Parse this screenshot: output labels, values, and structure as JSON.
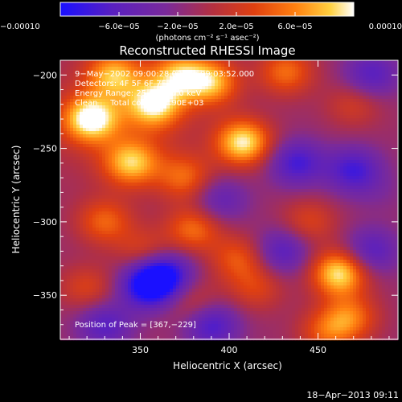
{
  "chart_data": {
    "type": "heatmap",
    "title": "Reconstructed RHESSI Image",
    "xlabel": "Heliocentric X (arcsec)",
    "ylabel": "Heliocentric Y (arcsec)",
    "xlim": [
      305,
      495
    ],
    "ylim": [
      -380,
      -190
    ],
    "x_ticks": [
      350,
      400,
      450
    ],
    "y_ticks": [
      -200,
      -250,
      -300,
      -350
    ],
    "colorbar": {
      "range": [
        -0.0001,
        0.0001
      ],
      "tick_values": [
        -0.0001,
        -6e-05,
        -2e-05,
        2e-05,
        6e-05,
        0.0001
      ],
      "tick_labels": [
        "−0.00010",
        "−6.0e−05",
        "−2.0e−05",
        "2.0e−05",
        "6.0e−05",
        "0.00010"
      ],
      "unit_label": "(photons cm⁻² s⁻¹ asec⁻²)",
      "colors": [
        "#1a10ff",
        "#5a20c0",
        "#7a2a9a",
        "#b43040",
        "#e04010",
        "#ff8010",
        "#ffd040",
        "#ffffff"
      ]
    },
    "annotations": [
      "9−May−2002 09:00:28.000 to 09:03:52.000",
      "Detectors: 4F 5F 6F 7F 8F 9F",
      "Energy Range: 25.0 − 50.0 keV",
      "Clean     Total counts: 1.90E+03"
    ],
    "peak_label": "Position of Peak = [367,−229]",
    "peak": [
      367,
      -229
    ],
    "sources": [
      {
        "x": 322,
        "y": -230,
        "v": 0.95
      },
      {
        "x": 335,
        "y": -200,
        "v": 0.7
      },
      {
        "x": 345,
        "y": -260,
        "v": 0.75
      },
      {
        "x": 358,
        "y": -220,
        "v": 0.85
      },
      {
        "x": 372,
        "y": -200,
        "v": 0.7
      },
      {
        "x": 390,
        "y": -205,
        "v": 0.75
      },
      {
        "x": 408,
        "y": -246,
        "v": 0.95
      },
      {
        "x": 375,
        "y": -270,
        "v": 0.5
      },
      {
        "x": 432,
        "y": -198,
        "v": 0.55
      },
      {
        "x": 330,
        "y": -300,
        "v": 0.5
      },
      {
        "x": 380,
        "y": -305,
        "v": 0.55
      },
      {
        "x": 352,
        "y": -320,
        "v": 0.35
      },
      {
        "x": 445,
        "y": -300,
        "v": 0.35
      },
      {
        "x": 405,
        "y": -325,
        "v": 0.45
      },
      {
        "x": 462,
        "y": -335,
        "v": 0.95
      },
      {
        "x": 415,
        "y": -345,
        "v": 0.35
      },
      {
        "x": 468,
        "y": -365,
        "v": 0.55
      },
      {
        "x": 455,
        "y": -375,
        "v": 0.45
      },
      {
        "x": 380,
        "y": -355,
        "v": 0.3
      },
      {
        "x": 320,
        "y": -345,
        "v": 0.35
      },
      {
        "x": 470,
        "y": -220,
        "v": 0.3
      },
      {
        "x": 485,
        "y": -280,
        "v": -0.1
      },
      {
        "x": 355,
        "y": -343,
        "v": -0.95
      },
      {
        "x": 438,
        "y": -260,
        "v": -0.6
      },
      {
        "x": 470,
        "y": -265,
        "v": -0.6
      },
      {
        "x": 430,
        "y": -320,
        "v": -0.5
      },
      {
        "x": 480,
        "y": -320,
        "v": -0.5
      },
      {
        "x": 395,
        "y": -285,
        "v": -0.4
      },
      {
        "x": 390,
        "y": -370,
        "v": -0.6
      },
      {
        "x": 330,
        "y": -370,
        "v": -0.5
      },
      {
        "x": 480,
        "y": -200,
        "v": -0.5
      },
      {
        "x": 365,
        "y": -335,
        "v": -0.6
      }
    ]
  },
  "footer": {
    "date_stamp": "18−Apr−2013 09:11"
  }
}
